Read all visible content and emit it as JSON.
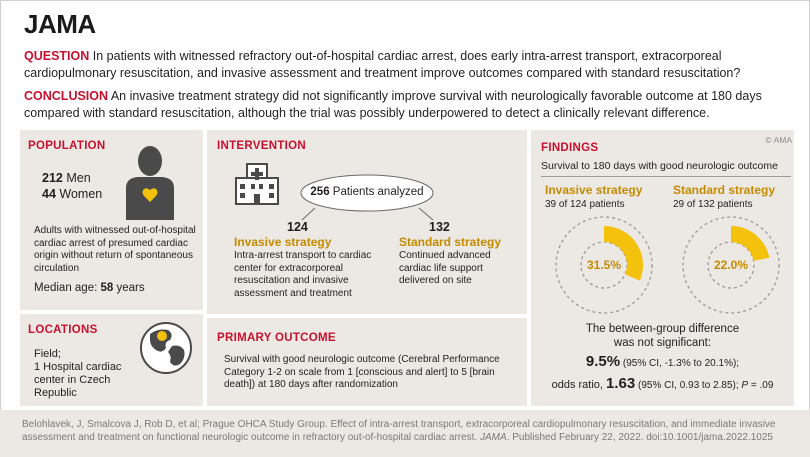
{
  "header": {
    "logo": "JAMA"
  },
  "question": {
    "keyword": "QUESTION",
    "text": " In patients with witnessed refractory out-of-hospital cardiac arrest, does early intra-arrest transport, extracorporeal cardiopulmonary resuscitation, and invasive assessment and treatment improve outcomes compared with standard resuscitation?"
  },
  "conclusion": {
    "keyword": "CONCLUSION",
    "text": " An invasive treatment strategy did not significantly improve survival with neurologically favorable outcome at 180 days compared with standard resuscitation, although the trial was possibly underpowered to detect a clinically relevant difference."
  },
  "copyright": "© AMA",
  "population": {
    "title": "POPULATION",
    "men_count": "212",
    "men_label": " Men",
    "women_count": "44",
    "women_label": " Women",
    "description": "Adults with witnessed out-of-hospital cardiac arrest of presumed cardiac origin without return of spontaneous circulation",
    "median_label": "Median age: ",
    "median_value": "58",
    "median_unit": " years"
  },
  "locations": {
    "title": "LOCATIONS",
    "text": "Field;\n1 Hospital cardiac center in Czech Republic"
  },
  "intervention": {
    "title": "INTERVENTION",
    "total": "256",
    "total_label": " Patients analyzed",
    "invasive_count": "124",
    "invasive_label": "Invasive strategy",
    "invasive_desc": "Intra-arrest transport to cardiac center for extracorporeal resuscitation and invasive assessment and treatment",
    "standard_count": "132",
    "standard_label": "Standard strategy",
    "standard_desc": "Continued advanced cardiac life support delivered on site"
  },
  "primary_outcome": {
    "title": "PRIMARY OUTCOME",
    "text": "Survival with good neurologic outcome (Cerebral Performance Category 1-2 on scale from 1 [conscious and alert] to 5 [brain death]) at 180 days after randomization"
  },
  "findings": {
    "title": "FINDINGS",
    "subtitle": "Survival to 180 days with good neurologic outcome",
    "invasive": {
      "label": "Invasive strategy",
      "detail": "39 of 124 patients",
      "percent": "31.5%",
      "fraction": 0.315
    },
    "standard": {
      "label": "Standard strategy",
      "detail": "29 of 132 patients",
      "percent": "22.0%",
      "fraction": 0.22
    },
    "difference_line1": "The between-group difference",
    "difference_line2": "was not significant:",
    "diff_value": "9.5%",
    "diff_ci": " (95% CI, -1.3% to 20.1%);",
    "or_label": "odds ratio, ",
    "or_value": "1.63",
    "or_ci": " (95% CI, 0.93 to 2.85); ",
    "p_label": "P",
    "p_value": " = .09"
  },
  "colors": {
    "accent_red": "#c8102e",
    "gold": "#f4c20d",
    "gold_text": "#c58b00",
    "panel": "#ece8e4"
  },
  "footer": {
    "text1": "Belohlavek, J, Smalcova J, Rob D, et al; Prague OHCA Study Group. Effect of intra-arrest transport, extracorporeal cardiopulmonary resuscitation, and immediate invasive assessment and treatment on functional neurologic outcome in refractory out-of-hospital cardiac arrest. ",
    "journal": "JAMA",
    "text2": ". Published February 22, 2022. doi:10.1001/jama.2022.1025"
  }
}
